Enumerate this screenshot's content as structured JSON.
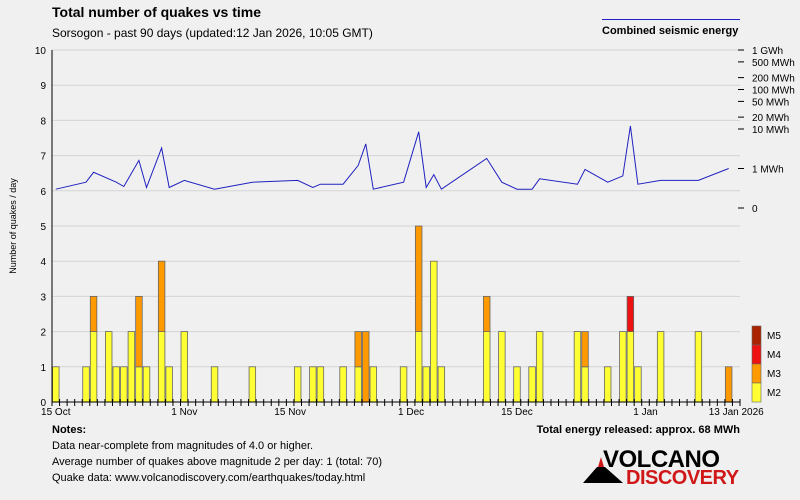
{
  "header": {
    "title": "Total number of quakes vs time",
    "subtitle": "Sorsogon - past 90 days (updated:12 Jan 2026, 10:05 GMT)",
    "energy_legend": "Combined seismic energy"
  },
  "colors": {
    "M2": "#ffff33",
    "M3": "#ff9900",
    "M4": "#ee1111",
    "M5": "#aa2200",
    "energy_line": "#2020c0",
    "background": "#f0f0f0"
  },
  "chart_data": {
    "type": "bar",
    "stacked": true,
    "ylabel": "Number of quakes / day",
    "ylim": [
      0,
      10
    ],
    "y_ticks": [
      "0",
      "1",
      "2",
      "3",
      "4",
      "5",
      "6",
      "7",
      "8",
      "9",
      "10"
    ],
    "day_count": 91,
    "x_tick_labels": [
      {
        "day": 0,
        "label": "15 Oct"
      },
      {
        "day": 17,
        "label": "1 Nov"
      },
      {
        "day": 31,
        "label": "15 Nov"
      },
      {
        "day": 47,
        "label": "1 Dec"
      },
      {
        "day": 61,
        "label": "15 Dec"
      },
      {
        "day": 78,
        "label": "1 Jan"
      },
      {
        "day": 90,
        "label": "13 Jan 2026"
      }
    ],
    "magnitude_legend": [
      "M5",
      "M4",
      "M3",
      "M2"
    ],
    "bars": [
      {
        "day": 0,
        "M2": 1,
        "M3": 0,
        "M4": 0
      },
      {
        "day": 4,
        "M2": 1,
        "M3": 0,
        "M4": 0
      },
      {
        "day": 5,
        "M2": 2,
        "M3": 1,
        "M4": 0
      },
      {
        "day": 7,
        "M2": 2,
        "M3": 0,
        "M4": 0
      },
      {
        "day": 8,
        "M2": 1,
        "M3": 0,
        "M4": 0
      },
      {
        "day": 9,
        "M2": 1,
        "M3": 0,
        "M4": 0
      },
      {
        "day": 10,
        "M2": 2,
        "M3": 0,
        "M4": 0
      },
      {
        "day": 11,
        "M2": 1,
        "M3": 2,
        "M4": 0
      },
      {
        "day": 12,
        "M2": 1,
        "M3": 0,
        "M4": 0
      },
      {
        "day": 14,
        "M2": 2,
        "M3": 2,
        "M4": 0
      },
      {
        "day": 15,
        "M2": 1,
        "M3": 0,
        "M4": 0
      },
      {
        "day": 17,
        "M2": 2,
        "M3": 0,
        "M4": 0
      },
      {
        "day": 21,
        "M2": 1,
        "M3": 0,
        "M4": 0
      },
      {
        "day": 26,
        "M2": 1,
        "M3": 0,
        "M4": 0
      },
      {
        "day": 32,
        "M2": 1,
        "M3": 0,
        "M4": 0
      },
      {
        "day": 34,
        "M2": 1,
        "M3": 0,
        "M4": 0
      },
      {
        "day": 35,
        "M2": 1,
        "M3": 0,
        "M4": 0
      },
      {
        "day": 38,
        "M2": 1,
        "M3": 0,
        "M4": 0
      },
      {
        "day": 40,
        "M2": 1,
        "M3": 1,
        "M4": 0
      },
      {
        "day": 41,
        "M2": 0,
        "M3": 2,
        "M4": 0
      },
      {
        "day": 42,
        "M2": 1,
        "M3": 0,
        "M4": 0
      },
      {
        "day": 46,
        "M2": 1,
        "M3": 0,
        "M4": 0
      },
      {
        "day": 48,
        "M2": 2,
        "M3": 3,
        "M4": 0
      },
      {
        "day": 49,
        "M2": 1,
        "M3": 0,
        "M4": 0
      },
      {
        "day": 50,
        "M2": 4,
        "M3": 0,
        "M4": 0
      },
      {
        "day": 51,
        "M2": 1,
        "M3": 0,
        "M4": 0
      },
      {
        "day": 57,
        "M2": 2,
        "M3": 1,
        "M4": 0
      },
      {
        "day": 59,
        "M2": 2,
        "M3": 0,
        "M4": 0
      },
      {
        "day": 61,
        "M2": 1,
        "M3": 0,
        "M4": 0
      },
      {
        "day": 63,
        "M2": 1,
        "M3": 0,
        "M4": 0
      },
      {
        "day": 64,
        "M2": 2,
        "M3": 0,
        "M4": 0
      },
      {
        "day": 69,
        "M2": 2,
        "M3": 0,
        "M4": 0
      },
      {
        "day": 70,
        "M2": 1,
        "M3": 1,
        "M4": 0
      },
      {
        "day": 73,
        "M2": 1,
        "M3": 0,
        "M4": 0
      },
      {
        "day": 75,
        "M2": 2,
        "M3": 0,
        "M4": 0
      },
      {
        "day": 76,
        "M2": 2,
        "M3": 0,
        "M4": 1
      },
      {
        "day": 77,
        "M2": 1,
        "M3": 0,
        "M4": 0
      },
      {
        "day": 80,
        "M2": 2,
        "M3": 0,
        "M4": 0
      },
      {
        "day": 85,
        "M2": 2,
        "M3": 0,
        "M4": 0
      },
      {
        "day": 89,
        "M2": 0,
        "M3": 1,
        "M4": 0
      }
    ],
    "energy_axis_labels": [
      "1 GWh",
      "500 MWh",
      "200 MWh",
      "100 MWh",
      "50 MWh",
      "20 MWh",
      "10 MWh",
      "1 MWh",
      "0"
    ],
    "energy_series": [
      {
        "day": 0,
        "mwh": 0.3
      },
      {
        "day": 4,
        "mwh": 0.45
      },
      {
        "day": 5,
        "mwh": 0.8
      },
      {
        "day": 8,
        "mwh": 0.45
      },
      {
        "day": 9,
        "mwh": 0.35
      },
      {
        "day": 11,
        "mwh": 1.6
      },
      {
        "day": 12,
        "mwh": 0.33
      },
      {
        "day": 14,
        "mwh": 3.3
      },
      {
        "day": 15,
        "mwh": 0.33
      },
      {
        "day": 17,
        "mwh": 0.5
      },
      {
        "day": 21,
        "mwh": 0.3
      },
      {
        "day": 26,
        "mwh": 0.45
      },
      {
        "day": 32,
        "mwh": 0.5
      },
      {
        "day": 34,
        "mwh": 0.33
      },
      {
        "day": 35,
        "mwh": 0.4
      },
      {
        "day": 38,
        "mwh": 0.4
      },
      {
        "day": 40,
        "mwh": 1.2
      },
      {
        "day": 41,
        "mwh": 4.2
      },
      {
        "day": 42,
        "mwh": 0.3
      },
      {
        "day": 46,
        "mwh": 0.45
      },
      {
        "day": 48,
        "mwh": 8.5
      },
      {
        "day": 49,
        "mwh": 0.33
      },
      {
        "day": 50,
        "mwh": 0.7
      },
      {
        "day": 51,
        "mwh": 0.3
      },
      {
        "day": 57,
        "mwh": 1.8
      },
      {
        "day": 59,
        "mwh": 0.45
      },
      {
        "day": 61,
        "mwh": 0.3
      },
      {
        "day": 63,
        "mwh": 0.3
      },
      {
        "day": 64,
        "mwh": 0.55
      },
      {
        "day": 69,
        "mwh": 0.4
      },
      {
        "day": 70,
        "mwh": 0.95
      },
      {
        "day": 73,
        "mwh": 0.45
      },
      {
        "day": 75,
        "mwh": 0.65
      },
      {
        "day": 76,
        "mwh": 12.0
      },
      {
        "day": 77,
        "mwh": 0.4
      },
      {
        "day": 80,
        "mwh": 0.5
      },
      {
        "day": 85,
        "mwh": 0.5
      },
      {
        "day": 89,
        "mwh": 1.0
      }
    ]
  },
  "notes": {
    "title": "Notes:",
    "lines": [
      "Data near-complete from magnitudes of 4.0 or higher.",
      "Average number of quakes above magnitude 2 per day: 1 (total: 70)",
      "Quake data: www.volcanodiscovery.com/earthquakes/today.html"
    ]
  },
  "total_energy": "Total energy released: approx. 68 MWh",
  "logo": {
    "top": "VOLCANO",
    "bottom": "DISCOVERY"
  }
}
